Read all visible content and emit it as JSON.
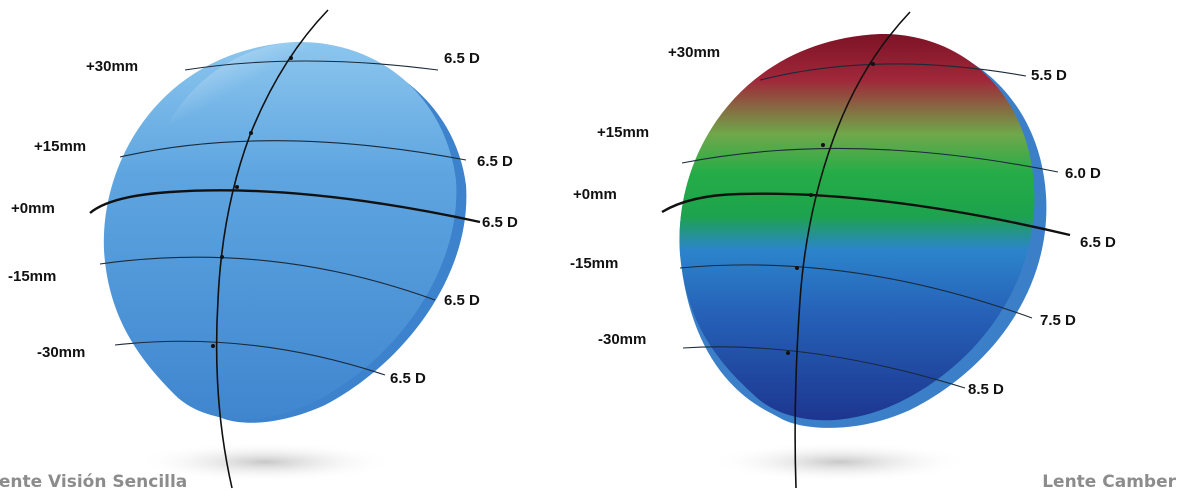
{
  "left_lens": {
    "caption": "Lente Visión Sencilla",
    "heights": [
      "+30mm",
      "+15mm",
      "+0mm",
      "-15mm",
      "-30mm"
    ],
    "powers": [
      "6.5 D",
      "6.5 D",
      "6.5 D",
      "6.5 D",
      "6.5 D"
    ],
    "color": "#4f97d8"
  },
  "right_lens": {
    "caption": "Lente Camber",
    "heights": [
      "+30mm",
      "+15mm",
      "+0mm",
      "-15mm",
      "-30mm"
    ],
    "powers": [
      "5.5 D",
      "6.0 D",
      "6.5 D",
      "7.5 D",
      "8.5 D"
    ],
    "gradient_colors": [
      "#8e1b2e",
      "#1fa64a",
      "#2f7fd0",
      "#1f3d9a"
    ]
  }
}
